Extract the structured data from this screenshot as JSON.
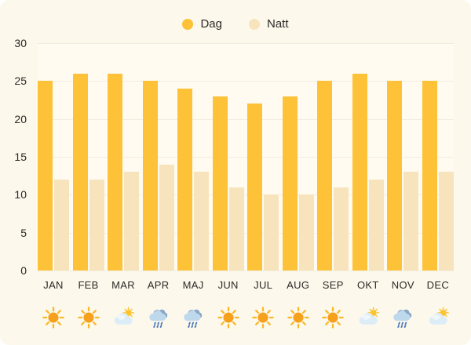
{
  "chart_data": {
    "type": "bar",
    "title": "",
    "categories": [
      "JAN",
      "FEB",
      "MAR",
      "APR",
      "MAJ",
      "JUN",
      "JUL",
      "AUG",
      "SEP",
      "OKT",
      "NOV",
      "DEC"
    ],
    "series": [
      {
        "name": "Dag",
        "color": "#FDC238",
        "values": [
          25,
          26,
          26,
          25,
          24,
          23,
          22,
          23,
          25,
          26,
          25,
          25
        ]
      },
      {
        "name": "Natt",
        "color": "#F8E4BC",
        "values": [
          12,
          12,
          13,
          14,
          13,
          11,
          10,
          10,
          11,
          12,
          13,
          13
        ]
      }
    ],
    "ylim": [
      0,
      30
    ],
    "yticks": [
      0,
      5,
      10,
      15,
      20,
      25,
      30
    ],
    "grid": true,
    "legend_position": "top-center",
    "weather_icons": [
      "sun",
      "sun",
      "partly-cloudy",
      "rain",
      "rain",
      "sun",
      "sun",
      "sun",
      "sun",
      "partly-cloudy",
      "rain",
      "partly-cloudy"
    ]
  },
  "colors": {
    "background": "#FDF8EC",
    "plot_background": "#FFFBF1",
    "gridline": "#F0EDE0",
    "text": "#2B2926",
    "dag_bar": "#FDC238",
    "natt_bar": "#F8E4BC",
    "sun_icon": "#F5A11E",
    "rain_drop": "#4C7ABA"
  }
}
